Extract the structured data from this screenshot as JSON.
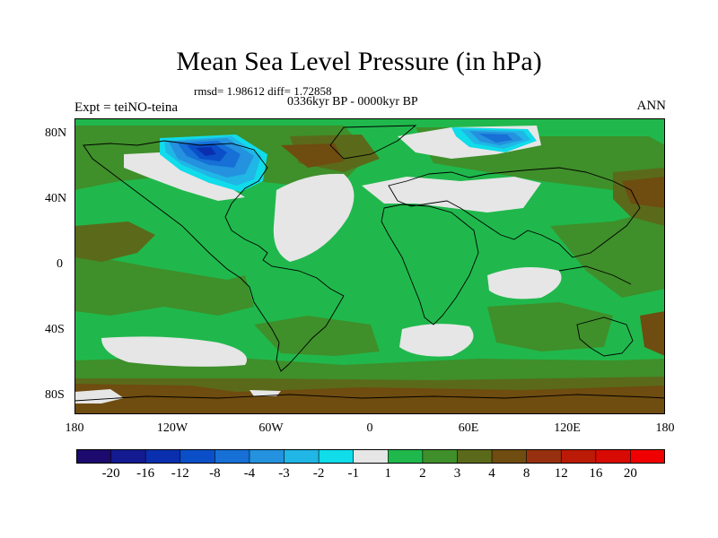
{
  "title": "Mean Sea Level Pressure (in hPa)",
  "stats": "rmsd= 1.98612 diff= 1.72858",
  "period": "0336kyr BP - 0000kyr BP",
  "experiment": "Expt = teiNO-teina",
  "season": "ANN",
  "lat_labels": [
    "80N",
    "40N",
    "0",
    "40S",
    "80S"
  ],
  "lon_labels": [
    "180",
    "120W",
    "60W",
    "0",
    "60E",
    "120E",
    "180"
  ],
  "colorbar": {
    "levels": [
      "-20",
      "-16",
      "-12",
      "-8",
      "-4",
      "-3",
      "-2",
      "-1",
      "1",
      "2",
      "3",
      "4",
      "8",
      "12",
      "16",
      "20"
    ],
    "colors": [
      "#1c0a6e",
      "#141a90",
      "#0a2fae",
      "#0a4fc8",
      "#1670d6",
      "#2492de",
      "#20b6e6",
      "#10dcea",
      "#e6e6e6",
      "#20b84c",
      "#3f8f2a",
      "#5a6a1a",
      "#6f4c10",
      "#963010",
      "#ba1a06",
      "#d80a04",
      "#f00000"
    ]
  },
  "map_colors": {
    "ocean_bg": "#20b84c",
    "neutral": "#e6e6e6",
    "pos3": "#3f8f2a",
    "pos4": "#5a6a1a",
    "pos8": "#6f4c10",
    "neg_light": "#10dcea",
    "neg2": "#20b6e6",
    "neg3": "#2492de",
    "neg4": "#1670d6",
    "neg8": "#0a4fc8",
    "neg12": "#0a2fae"
  }
}
